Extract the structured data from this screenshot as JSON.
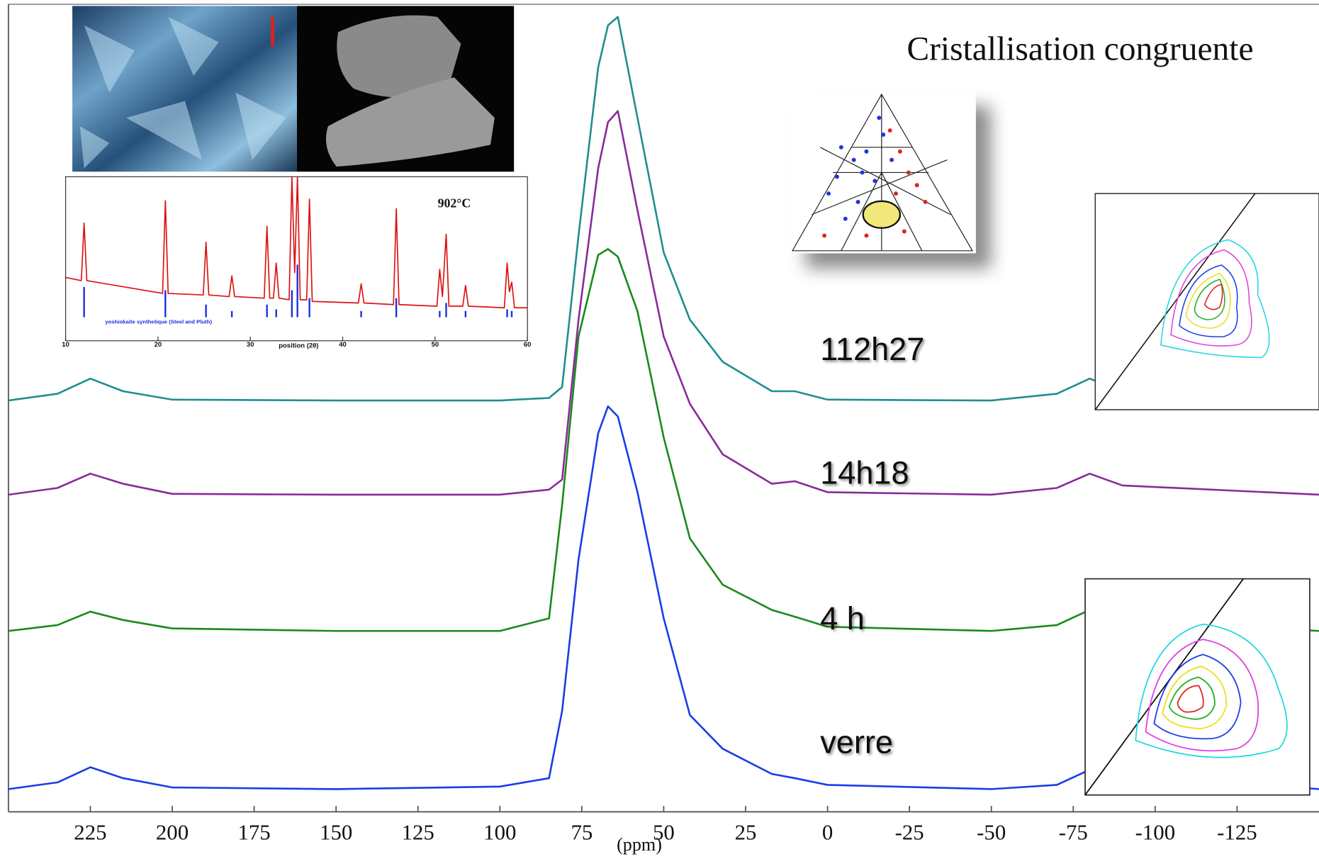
{
  "chart_data": [
    {
      "type": "line",
      "title": "Cristallisation congruente",
      "x_label": "(ppm)",
      "x": [
        250,
        235,
        225,
        215,
        200,
        150,
        100,
        85,
        81,
        76,
        70,
        67,
        64,
        58,
        50,
        42,
        32,
        17,
        10,
        0,
        -50,
        -70,
        -80,
        -90,
        -150
      ],
      "series": [
        {
          "name": "112h27",
          "color": "#1f8f8f",
          "values": [
            489,
            497,
            515,
            500,
            490,
            489,
            489,
            492,
            505,
            685,
            885,
            935,
            945,
            825,
            665,
            585,
            535,
            500,
            500,
            490,
            489,
            497,
            515,
            500,
            489
          ]
        },
        {
          "name": "14h18",
          "color": "#8a2a9a",
          "values": [
            377,
            385,
            402,
            390,
            378,
            377,
            377,
            383,
            395,
            585,
            765,
            820,
            833,
            715,
            565,
            485,
            425,
            390,
            393,
            380,
            377,
            385,
            402,
            388,
            377
          ]
        },
        {
          "name": "4 h",
          "color": "#1a8a1a",
          "values": [
            215,
            222,
            238,
            228,
            218,
            215,
            215,
            230,
            365,
            565,
            662,
            669,
            660,
            595,
            445,
            325,
            270,
            240,
            232,
            220,
            215,
            222,
            240,
            230,
            215
          ]
        },
        {
          "name": "verre",
          "color": "#1a3de8",
          "values": [
            27,
            35,
            53,
            40,
            29,
            27,
            30,
            40,
            120,
            300,
            450,
            482,
            470,
            380,
            230,
            115,
            75,
            45,
            40,
            32,
            27,
            32,
            50,
            45,
            27
          ]
        }
      ],
      "xlim": [
        250,
        -150
      ],
      "ylim": [
        0,
        960
      ],
      "xticks": [
        225,
        200,
        175,
        150,
        125,
        100,
        75,
        50,
        25,
        0,
        -25,
        -50,
        -75,
        -100,
        -125
      ],
      "grid": false
    },
    {
      "type": "line",
      "annotation": "902°C",
      "x_label": "position (2θ)",
      "color": "#dd1111",
      "x": [
        10,
        11.7,
        12,
        12.3,
        20.5,
        20.8,
        21.1,
        24.9,
        25.2,
        25.5,
        27.7,
        28,
        28.3,
        31.5,
        31.8,
        32.1,
        32.5,
        32.8,
        33.1,
        34.2,
        34.5,
        34.8,
        35.1,
        35.4,
        36.1,
        36.4,
        36.7,
        41.7,
        42,
        42.3,
        45.5,
        45.8,
        46.1,
        50.2,
        50.5,
        50.8,
        51.2,
        51.5,
        53,
        53.3,
        53.6,
        57.5,
        57.8,
        58.05,
        58.3,
        58.6,
        60
      ],
      "values": [
        37,
        35,
        71,
        35,
        27,
        85,
        27,
        26,
        59,
        26,
        25,
        38,
        25,
        24,
        69,
        24,
        24,
        46,
        24,
        23,
        100,
        40,
        100,
        23,
        23,
        86,
        22,
        21,
        33,
        21,
        20,
        80,
        20,
        19,
        42,
        25,
        64,
        19,
        19,
        32,
        19,
        18,
        46,
        28,
        34,
        18,
        18
      ],
      "sticks": {
        "name": "yoshiokaite synthetique (Steel and Pluth)",
        "color": "#1a2ee0",
        "x": [
          12,
          20.8,
          25.2,
          28,
          31.8,
          32.8,
          34.5,
          35.1,
          36.4,
          42,
          45.8,
          50.5,
          51.2,
          53.3,
          57.8,
          58.3
        ],
        "values": [
          31,
          29,
          20,
          16,
          20,
          17,
          29,
          45,
          24,
          16,
          24,
          16,
          21,
          16,
          17,
          16
        ]
      },
      "xlim": [
        10,
        60
      ],
      "ylim": [
        0,
        100
      ],
      "xticks": [
        10,
        20,
        30,
        40,
        50,
        60
      ]
    }
  ]
}
